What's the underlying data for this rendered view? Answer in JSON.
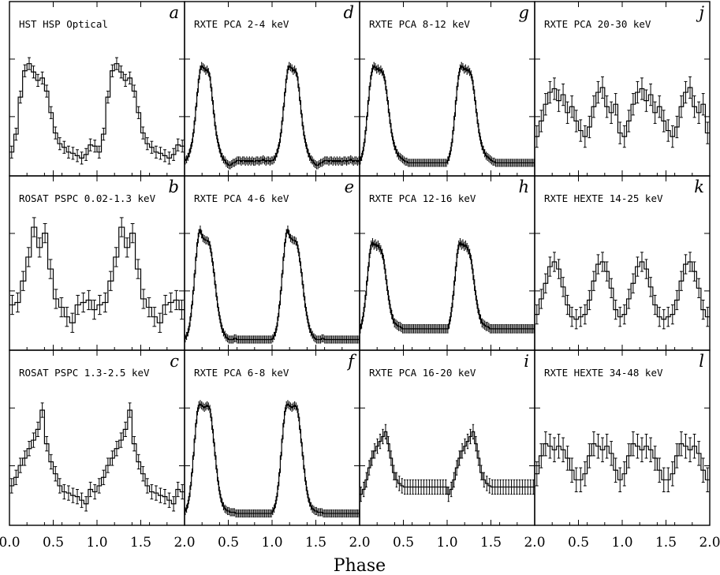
{
  "chart_data": {
    "type": "line",
    "layout": "grid",
    "rows": 3,
    "cols": 4,
    "xlabel": "Phase",
    "xlim": [
      0.0,
      2.0
    ],
    "xticks": [
      "0.0",
      "0.5",
      "1.0",
      "1.5",
      "2.0"
    ],
    "ylim": [
      0,
      1
    ],
    "grid": false,
    "panels": [
      {
        "letter": "a",
        "title": "HST HSP Optical",
        "bins": 20,
        "errorbars": true,
        "values": [
          0.12,
          0.27,
          0.58,
          0.8,
          0.86,
          0.79,
          0.72,
          0.74,
          0.63,
          0.45,
          0.28,
          0.19,
          0.16,
          0.12,
          0.11,
          0.09,
          0.07,
          0.1,
          0.18,
          0.17
        ],
        "errors": [
          0.05,
          0.05,
          0.05,
          0.05,
          0.05,
          0.05,
          0.05,
          0.05,
          0.05,
          0.05,
          0.05,
          0.05,
          0.05,
          0.05,
          0.05,
          0.05,
          0.05,
          0.05,
          0.05,
          0.05
        ]
      },
      {
        "letter": "b",
        "title": "ROSAT PSPC 0.02-1.3 keV",
        "bins": 16,
        "errorbars": true,
        "values": [
          0.3,
          0.32,
          0.5,
          0.7,
          0.95,
          0.78,
          0.9,
          0.6,
          0.35,
          0.28,
          0.2,
          0.15,
          0.3,
          0.32,
          0.34,
          0.26
        ],
        "errors": [
          0.08,
          0.08,
          0.08,
          0.08,
          0.08,
          0.08,
          0.08,
          0.08,
          0.08,
          0.08,
          0.08,
          0.08,
          0.08,
          0.08,
          0.08,
          0.08
        ]
      },
      {
        "letter": "c",
        "title": "ROSAT PSPC 1.3-2.5 keV",
        "bins": 20,
        "errorbars": true,
        "values": [
          0.25,
          0.32,
          0.42,
          0.48,
          0.56,
          0.63,
          0.72,
          0.88,
          0.6,
          0.45,
          0.35,
          0.25,
          0.2,
          0.19,
          0.17,
          0.16,
          0.13,
          0.1,
          0.22,
          0.2
        ],
        "errors": [
          0.06,
          0.06,
          0.06,
          0.06,
          0.06,
          0.06,
          0.06,
          0.06,
          0.06,
          0.06,
          0.06,
          0.06,
          0.06,
          0.06,
          0.06,
          0.06,
          0.06,
          0.06,
          0.06,
          0.06
        ]
      },
      {
        "letter": "d",
        "title": "RXTE PCA 2-4 keV",
        "bins": 64,
        "errorbars": true,
        "values": [
          0.05,
          0.06,
          0.08,
          0.11,
          0.15,
          0.2,
          0.28,
          0.38,
          0.5,
          0.62,
          0.73,
          0.81,
          0.84,
          0.83,
          0.82,
          0.8,
          0.81,
          0.79,
          0.75,
          0.66,
          0.55,
          0.44,
          0.34,
          0.26,
          0.2,
          0.15,
          0.11,
          0.08,
          0.06,
          0.05,
          0.03,
          0.02,
          0.01,
          0.01,
          0.02,
          0.03,
          0.03,
          0.04,
          0.05,
          0.05,
          0.05,
          0.04,
          0.05,
          0.05,
          0.04,
          0.05,
          0.04,
          0.05,
          0.04,
          0.05,
          0.04,
          0.04,
          0.05,
          0.05,
          0.04,
          0.05,
          0.05,
          0.06,
          0.05,
          0.04,
          0.05,
          0.05,
          0.04,
          0.05
        ],
        "errors": [
          0.03
        ]
      },
      {
        "letter": "e",
        "title": "RXTE PCA 4-6 keV",
        "bins": 64,
        "errorbars": true,
        "values": [
          0.02,
          0.04,
          0.07,
          0.12,
          0.2,
          0.3,
          0.42,
          0.56,
          0.7,
          0.82,
          0.9,
          0.93,
          0.89,
          0.86,
          0.85,
          0.84,
          0.84,
          0.83,
          0.8,
          0.74,
          0.66,
          0.57,
          0.47,
          0.37,
          0.28,
          0.21,
          0.15,
          0.1,
          0.07,
          0.05,
          0.03,
          0.02,
          0.01,
          0.01,
          0.01,
          0.01,
          0.02,
          0.02,
          0.01,
          0.01,
          0.01,
          0.01,
          0.01,
          0.01,
          0.01,
          0.01,
          0.01,
          0.01,
          0.01,
          0.01,
          0.01,
          0.01,
          0.01,
          0.01,
          0.01,
          0.01,
          0.01,
          0.01,
          0.01,
          0.01,
          0.01,
          0.01,
          0.01,
          0.01
        ],
        "errors": [
          0.03
        ]
      },
      {
        "letter": "f",
        "title": "RXTE PCA 6-8 keV",
        "bins": 64,
        "errorbars": true,
        "values": [
          0.04,
          0.06,
          0.1,
          0.16,
          0.25,
          0.36,
          0.5,
          0.64,
          0.77,
          0.87,
          0.92,
          0.93,
          0.92,
          0.91,
          0.9,
          0.91,
          0.92,
          0.91,
          0.89,
          0.82,
          0.72,
          0.61,
          0.5,
          0.39,
          0.29,
          0.21,
          0.15,
          0.11,
          0.08,
          0.06,
          0.05,
          0.04,
          0.04,
          0.03,
          0.03,
          0.03,
          0.03,
          0.02,
          0.02,
          0.02,
          0.02,
          0.02,
          0.02,
          0.02,
          0.02,
          0.02,
          0.02,
          0.02,
          0.02,
          0.02,
          0.02,
          0.02,
          0.02,
          0.02,
          0.02,
          0.02,
          0.02,
          0.02,
          0.02,
          0.02,
          0.02,
          0.02,
          0.02,
          0.02
        ],
        "errors": [
          0.03
        ]
      },
      {
        "letter": "g",
        "title": "RXTE PCA 8-12 keV",
        "bins": 64,
        "errorbars": true,
        "values": [
          0.05,
          0.08,
          0.13,
          0.2,
          0.3,
          0.42,
          0.55,
          0.67,
          0.76,
          0.82,
          0.84,
          0.83,
          0.81,
          0.82,
          0.8,
          0.81,
          0.79,
          0.77,
          0.72,
          0.64,
          0.55,
          0.45,
          0.36,
          0.28,
          0.22,
          0.17,
          0.14,
          0.11,
          0.09,
          0.08,
          0.07,
          0.06,
          0.05,
          0.04,
          0.04,
          0.03,
          0.03,
          0.03,
          0.03,
          0.03,
          0.03,
          0.03,
          0.03,
          0.03,
          0.03,
          0.03,
          0.03,
          0.03,
          0.03,
          0.03,
          0.03,
          0.03,
          0.03,
          0.03,
          0.03,
          0.03,
          0.03,
          0.03,
          0.03,
          0.03,
          0.03,
          0.03,
          0.03,
          0.03
        ],
        "errors": [
          0.03
        ]
      },
      {
        "letter": "h",
        "title": "RXTE PCA 12-16 keV",
        "bins": 64,
        "errorbars": true,
        "values": [
          0.1,
          0.14,
          0.2,
          0.28,
          0.38,
          0.5,
          0.62,
          0.73,
          0.8,
          0.82,
          0.8,
          0.81,
          0.79,
          0.8,
          0.78,
          0.76,
          0.73,
          0.68,
          0.6,
          0.51,
          0.42,
          0.34,
          0.27,
          0.22,
          0.18,
          0.15,
          0.14,
          0.13,
          0.12,
          0.12,
          0.11,
          0.1,
          0.1,
          0.1,
          0.1,
          0.1,
          0.1,
          0.1,
          0.1,
          0.1,
          0.1,
          0.1,
          0.1,
          0.1,
          0.1,
          0.1,
          0.1,
          0.1,
          0.1,
          0.1,
          0.1,
          0.1,
          0.1,
          0.1,
          0.1,
          0.1,
          0.1,
          0.1,
          0.1,
          0.1,
          0.1,
          0.1,
          0.1,
          0.1
        ],
        "errors": [
          0.035
        ]
      },
      {
        "letter": "i",
        "title": "RXTE PCA 16-20 keV",
        "bins": 32,
        "errorbars": true,
        "values": [
          0.18,
          0.22,
          0.3,
          0.4,
          0.48,
          0.54,
          0.58,
          0.62,
          0.66,
          0.7,
          0.6,
          0.48,
          0.36,
          0.3,
          0.27,
          0.25,
          0.24,
          0.24,
          0.24,
          0.24,
          0.24,
          0.24,
          0.24,
          0.24,
          0.24,
          0.24,
          0.24,
          0.24,
          0.24,
          0.24,
          0.24,
          0.24
        ],
        "errors": [
          0.06
        ]
      },
      {
        "letter": "j",
        "title": "RXTE PCA 20-30 keV",
        "bins": 20,
        "errorbars": true,
        "values": [
          0.25,
          0.38,
          0.52,
          0.62,
          0.65,
          0.55,
          0.6,
          0.45,
          0.5,
          0.38,
          0.3,
          0.25,
          0.33,
          0.5,
          0.62,
          0.66,
          0.5,
          0.45,
          0.52,
          0.28
        ],
        "errors": [
          0.09
        ]
      },
      {
        "letter": "k",
        "title": "RXTE HEXTE 14-25 keV",
        "bins": 20,
        "errorbars": true,
        "values": [
          0.22,
          0.35,
          0.48,
          0.62,
          0.66,
          0.6,
          0.45,
          0.3,
          0.2,
          0.18,
          0.2,
          0.22,
          0.34,
          0.5,
          0.64,
          0.66,
          0.58,
          0.44,
          0.26,
          0.2
        ],
        "errors": [
          0.08
        ]
      },
      {
        "letter": "l",
        "title": "RXTE HEXTE 34-48 keV",
        "bins": 20,
        "errorbars": true,
        "values": [
          0.35,
          0.5,
          0.6,
          0.58,
          0.55,
          0.58,
          0.55,
          0.48,
          0.38,
          0.3,
          0.3,
          0.35,
          0.5,
          0.6,
          0.58,
          0.55,
          0.58,
          0.52,
          0.38,
          0.3
        ],
        "errors": [
          0.1
        ]
      }
    ]
  }
}
